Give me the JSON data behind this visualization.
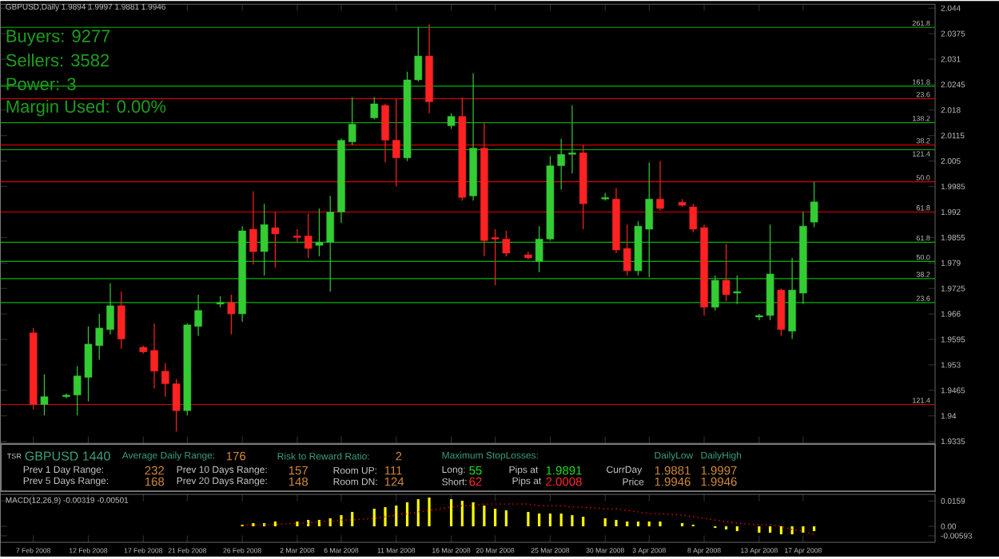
{
  "chart_data": [
    {
      "type": "candlestick",
      "title": "GBPUSD,Daily 1.9894 1.9997 1.9881 1.9946",
      "x": [
        "2008-02-07",
        "2008-02-08",
        "2008-02-10",
        "2008-02-11",
        "2008-02-12",
        "2008-02-13",
        "2008-02-14",
        "2008-02-15",
        "2008-02-17",
        "2008-02-18",
        "2008-02-19",
        "2008-02-20",
        "2008-02-21",
        "2008-02-22",
        "2008-02-24",
        "2008-02-25",
        "2008-02-26",
        "2008-02-27",
        "2008-02-28",
        "2008-02-29",
        "2008-03-02",
        "2008-03-03",
        "2008-03-04",
        "2008-03-05",
        "2008-03-06",
        "2008-03-07",
        "2008-03-09",
        "2008-03-10",
        "2008-03-11",
        "2008-03-12",
        "2008-03-13",
        "2008-03-14",
        "2008-03-16",
        "2008-03-17",
        "2008-03-18",
        "2008-03-19",
        "2008-03-20",
        "2008-03-21",
        "2008-03-23",
        "2008-03-24",
        "2008-03-25",
        "2008-03-26",
        "2008-03-27",
        "2008-03-28",
        "2008-03-30",
        "2008-03-31",
        "2008-04-01",
        "2008-04-02",
        "2008-04-03",
        "2008-04-04",
        "2008-04-06",
        "2008-04-07",
        "2008-04-08",
        "2008-04-09",
        "2008-04-10",
        "2008-04-11",
        "2008-04-13",
        "2008-04-14",
        "2008-04-15",
        "2008-04-16",
        "2008-04-17",
        "2008-04-18"
      ],
      "xlim": [
        "2008-02-04",
        "2008-04-29"
      ],
      "xticks": [
        {
          "value": "2008-02-07",
          "label": null
        },
        {
          "value": "2008-02-12",
          "label": null
        },
        {
          "value": "2008-02-17",
          "label": null
        },
        {
          "value": "2008-02-21",
          "label": null
        },
        {
          "value": "2008-02-26",
          "label": null
        },
        {
          "value": "2008-03-02",
          "label": null
        },
        {
          "value": "2008-03-06",
          "label": null
        },
        {
          "value": "2008-03-11",
          "label": null
        },
        {
          "value": "2008-03-16",
          "label": null
        },
        {
          "value": "2008-03-20",
          "label": null
        },
        {
          "value": "2008-03-25",
          "label": null
        },
        {
          "value": "2008-03-30",
          "label": null
        },
        {
          "value": "2008-04-03",
          "label": null
        },
        {
          "value": "2008-04-08",
          "label": null
        },
        {
          "value": "2008-04-13",
          "label": null
        },
        {
          "value": "2008-04-17",
          "label": null
        }
      ],
      "tick_labels": "y",
      "ohlc": [
        [
          1.9612,
          1.9624,
          1.9417,
          1.9429
        ],
        [
          1.9429,
          1.9506,
          1.9401,
          1.9449
        ],
        [
          1.9449,
          1.9457,
          1.9445,
          1.9453
        ],
        [
          1.9453,
          1.9527,
          1.9401,
          1.9502
        ],
        [
          1.9498,
          1.9628,
          1.9437,
          1.9583
        ],
        [
          1.9579,
          1.966,
          1.9543,
          1.9624
        ],
        [
          1.962,
          1.9738,
          1.9608,
          1.9681
        ],
        [
          1.9681,
          1.9717,
          1.9571,
          1.9596
        ],
        [
          1.9575,
          1.9579,
          1.9559,
          1.9563
        ],
        [
          1.9567,
          1.9636,
          1.947,
          1.9514
        ],
        [
          1.9514,
          1.9535,
          1.9449,
          1.9482
        ],
        [
          1.9482,
          1.9494,
          1.936,
          1.9413
        ],
        [
          1.9413,
          1.9636,
          1.9401,
          1.9632
        ],
        [
          1.9628,
          1.9709,
          1.9604,
          1.9669
        ],
        [
          1.9685,
          1.9705,
          1.9677,
          1.9689
        ],
        [
          1.9689,
          1.9709,
          1.9608,
          1.966
        ],
        [
          1.966,
          1.9884,
          1.964,
          1.9872
        ],
        [
          1.9876,
          1.9973,
          1.9786,
          1.9819
        ],
        [
          1.9819,
          1.9941,
          1.9758,
          1.9888
        ],
        [
          1.988,
          1.992,
          1.9778,
          1.9864
        ],
        [
          1.9859,
          1.9876,
          1.9843,
          1.9855
        ],
        [
          1.9859,
          1.9916,
          1.9803,
          1.9827
        ],
        [
          1.9835,
          1.9929,
          1.9807,
          1.9843
        ],
        [
          1.9843,
          1.9961,
          1.9717,
          1.992
        ],
        [
          1.992,
          2.0107,
          1.9892,
          2.0103
        ],
        [
          2.0099,
          2.0213,
          2.0091,
          2.0144
        ],
        [
          2.016,
          2.0213,
          2.0156,
          2.0196
        ],
        [
          2.0192,
          2.0196,
          2.0046,
          2.0103
        ],
        [
          2.0103,
          2.0209,
          1.9985,
          2.0058
        ],
        [
          2.0058,
          2.0278,
          2.005,
          2.0257
        ],
        [
          2.0257,
          2.0391,
          2.0253,
          2.0318
        ],
        [
          2.0318,
          2.0399,
          2.0172,
          2.0201
        ],
        [
          2.014,
          2.0172,
          2.0132,
          2.0164
        ],
        [
          2.0164,
          2.0213,
          1.9949,
          1.9957
        ],
        [
          1.9961,
          2.0274,
          1.9949,
          2.0083
        ],
        [
          2.0083,
          2.0148,
          1.9807,
          1.9847
        ],
        [
          1.9855,
          1.9876,
          1.9733,
          1.9851
        ],
        [
          1.9851,
          1.9872,
          1.9807,
          1.9815
        ],
        [
          1.9811,
          1.9819,
          1.9799,
          1.9803
        ],
        [
          1.9794,
          1.9884,
          1.9766,
          1.9851
        ],
        [
          1.9851,
          2.0062,
          1.9847,
          2.0038
        ],
        [
          2.0038,
          2.0107,
          1.9977,
          2.0067
        ],
        [
          2.0067,
          2.0192,
          2.0018,
          2.0071
        ],
        [
          2.0071,
          2.0091,
          1.9876,
          1.9941
        ],
        [
          1.9953,
          1.9969,
          1.9949,
          1.9957
        ],
        [
          1.9953,
          1.9981,
          1.9815,
          1.9823
        ],
        [
          1.9827,
          1.9888,
          1.9758,
          1.977
        ],
        [
          1.977,
          1.9896,
          1.9758,
          1.9884
        ],
        [
          1.9876,
          2.0046,
          1.9754,
          1.9953
        ],
        [
          1.9953,
          2.005,
          1.9924,
          1.9929
        ],
        [
          1.9945,
          1.9953,
          1.9933,
          1.9937
        ],
        [
          1.9933,
          1.9941,
          1.9868,
          1.9876
        ],
        [
          1.988,
          1.9888,
          1.9656,
          1.9677
        ],
        [
          1.9677,
          1.9758,
          1.9669,
          1.9746
        ],
        [
          1.9746,
          1.9839,
          1.9693,
          1.9709
        ],
        [
          1.9713,
          1.9758,
          1.9685,
          1.9717
        ],
        [
          1.9652,
          1.966,
          1.9644,
          1.9656
        ],
        [
          1.9656,
          1.9888,
          1.9644,
          1.9762
        ],
        [
          1.9721,
          1.9725,
          1.9604,
          1.962
        ],
        [
          1.9616,
          1.9803,
          1.9596,
          1.9721
        ],
        [
          1.9713,
          1.992,
          1.9685,
          1.9884
        ],
        [
          1.9894,
          1.9997,
          1.9881,
          1.9946
        ]
      ],
      "colors": [
        "#ff2222",
        "#33cc33",
        "#33cc33",
        "#33cc33",
        "#33cc33",
        "#33cc33",
        "#33cc33",
        "#ff2222",
        "#ff2222",
        "#ff2222",
        "#ff2222",
        "#ff2222",
        "#33cc33",
        "#33cc33",
        "#33cc33",
        "#ff2222",
        "#33cc33",
        "#ff2222",
        "#33cc33",
        "#ff2222",
        "#ff2222",
        "#ff2222",
        "#33cc33",
        "#33cc33",
        "#33cc33",
        "#33cc33",
        "#33cc33",
        "#ff2222",
        "#ff2222",
        "#33cc33",
        "#33cc33",
        "#ff2222",
        "#33cc33",
        "#ff2222",
        "#33cc33",
        "#ff2222",
        "#ff2222",
        "#ff2222",
        "#ff2222",
        "#33cc33",
        "#33cc33",
        "#33cc33",
        "#33cc33",
        "#ff2222",
        "#33cc33",
        "#ff2222",
        "#ff2222",
        "#33cc33",
        "#33cc33",
        "#ff2222",
        "#ff2222",
        "#ff2222",
        "#ff2222",
        "#33cc33",
        "#ff2222",
        "#33cc33",
        "#33cc33",
        "#33cc33",
        "#ff2222",
        "#33cc33",
        "#33cc33",
        "#33cc33"
      ],
      "ylim": [
        1.933,
        2.045
      ],
      "yticks": [
        1.9335,
        1.94,
        1.9465,
        1.953,
        1.9595,
        1.966,
        1.9725,
        1.979,
        1.9855,
        1.992,
        1.9985,
        2.005,
        2.0115,
        2.018,
        2.0245,
        2.031,
        2.0375,
        2.044
      ],
      "ref_lines": [
        {
          "axis": "y",
          "value": 2.0391,
          "color": "#00b400"
        },
        {
          "axis": "y",
          "value": 2.0241,
          "color": "#00b400"
        },
        {
          "axis": "y",
          "value": 2.0148,
          "color": "#00b400"
        },
        {
          "axis": "y",
          "value": 2.0079,
          "color": "#00b400"
        },
        {
          "axis": "y",
          "value": 1.9843,
          "color": "#00b400"
        },
        {
          "axis": "y",
          "value": 1.9794,
          "color": "#00b400"
        },
        {
          "axis": "y",
          "value": 1.975,
          "color": "#00b400"
        },
        {
          "axis": "y",
          "value": 1.9689,
          "color": "#00b400"
        },
        {
          "axis": "y",
          "value": 2.0209,
          "color": "#e00000"
        },
        {
          "axis": "y",
          "value": 2.0091,
          "color": "#e00000"
        },
        {
          "axis": "y",
          "value": 1.9997,
          "color": "#e00000"
        },
        {
          "axis": "y",
          "value": 1.992,
          "color": "#e00000"
        },
        {
          "axis": "y",
          "value": 1.9429,
          "color": "#e00000"
        }
      ],
      "annotations": [
        {
          "text": "261.8",
          "y": 2.0391
        },
        {
          "text": "161.8",
          "y": 2.0241
        },
        {
          "text": "138.2",
          "y": 2.0148
        },
        {
          "text": "121.4",
          "y": 2.0079
        },
        {
          "text": "61.8",
          "y": 1.9843
        },
        {
          "text": "50.0",
          "y": 1.9794
        },
        {
          "text": "38.2",
          "y": 1.975
        },
        {
          "text": "23.6",
          "y": 1.9689
        },
        {
          "text": "23.6",
          "y": 2.0209
        },
        {
          "text": "38.2",
          "y": 2.0091
        },
        {
          "text": "50.0",
          "y": 1.9997
        },
        {
          "text": "61.8",
          "y": 1.992
        },
        {
          "text": "121.4",
          "y": 1.9429
        },
        "Buyers: 9277",
        "Sellers: 3582",
        "Power: 3",
        "Margin Used: 0.00%",
        "TSR",
        "GBPUSD 1440",
        "Average Daily Range:",
        "176",
        "Risk to Reward Ratio:",
        "2",
        "Maximum StopLosses:",
        "Prev 1 Day Range:",
        "232",
        "Prev 10 Days Range:",
        "157",
        "Room UP:",
        "111",
        "Long:",
        "55",
        "Pips at",
        "1.9891",
        "CurrDay",
        "1.9881",
        "1.9997",
        "Prev 5 Days Range:",
        "168",
        "Prev 20 Days Range:",
        "148",
        "Room DN:",
        "124",
        "Short:",
        "62",
        "Pips at",
        "2.0008",
        "Price",
        "1.9946",
        "1.9946",
        "DailyLow",
        "DailyHigh"
      ]
    },
    {
      "type": "bar",
      "title": "MACD(12,26,9) -0.00319 -0.00501",
      "x": [
        "2008-02-26",
        "2008-02-27",
        "2008-02-28",
        "2008-02-29",
        "2008-03-02",
        "2008-03-03",
        "2008-03-04",
        "2008-03-05",
        "2008-03-06",
        "2008-03-07",
        "2008-03-09",
        "2008-03-10",
        "2008-03-11",
        "2008-03-12",
        "2008-03-13",
        "2008-03-14",
        "2008-03-16",
        "2008-03-17",
        "2008-03-18",
        "2008-03-19",
        "2008-03-20",
        "2008-03-21",
        "2008-03-23",
        "2008-03-24",
        "2008-03-25",
        "2008-03-26",
        "2008-03-27",
        "2008-03-28",
        "2008-03-30",
        "2008-03-31",
        "2008-04-01",
        "2008-04-02",
        "2008-04-03",
        "2008-04-04",
        "2008-04-06",
        "2008-04-07",
        "2008-04-08",
        "2008-04-09",
        "2008-04-10",
        "2008-04-11",
        "2008-04-13",
        "2008-04-14",
        "2008-04-15",
        "2008-04-16",
        "2008-04-17",
        "2008-04-18"
      ],
      "xlim": [
        "2008-02-04",
        "2008-04-29"
      ],
      "xticks": [
        {
          "value": "2008-02-07",
          "label": "7 Feb 2008"
        },
        {
          "value": "2008-02-12",
          "label": "12 Feb 2008"
        },
        {
          "value": "2008-02-17",
          "label": "17 Feb 2008"
        },
        {
          "value": "2008-02-21",
          "label": "21 Feb 2008"
        },
        {
          "value": "2008-02-26",
          "label": "26 Feb 2008"
        },
        {
          "value": "2008-03-02",
          "label": "2 Mar 2008"
        },
        {
          "value": "2008-03-06",
          "label": "6 Mar 2008"
        },
        {
          "value": "2008-03-11",
          "label": "11 Mar 2008"
        },
        {
          "value": "2008-03-16",
          "label": "16 Mar 2008"
        },
        {
          "value": "2008-03-20",
          "label": "20 Mar 2008"
        },
        {
          "value": "2008-03-25",
          "label": "25 Mar 2008"
        },
        {
          "value": "2008-03-30",
          "label": "30 Mar 2008"
        },
        {
          "value": "2008-04-03",
          "label": "3 Apr 2008"
        },
        {
          "value": "2008-04-08",
          "label": "8 Apr 2008"
        },
        {
          "value": "2008-04-13",
          "label": "13 Apr 2008"
        },
        {
          "value": "2008-04-17",
          "label": "17 Apr 2008"
        }
      ],
      "series": [
        {
          "type": "bar",
          "color": "#ffff00",
          "values": [
            0.001,
            0.002,
            0.002,
            0.003,
            0.003,
            0.004,
            0.004,
            0.005,
            0.007,
            0.009,
            0.011,
            0.012,
            0.013,
            0.015,
            0.017,
            0.018,
            0.017,
            0.016,
            0.015,
            0.013,
            0.011,
            0.01,
            0.009,
            0.008,
            0.008,
            0.008,
            0.007,
            0.006,
            0.005,
            0.004,
            0.003,
            0.003,
            0.003,
            0.003,
            0.002,
            0.001,
            0.0,
            -0.001,
            -0.002,
            -0.003,
            -0.004,
            -0.004,
            -0.005,
            -0.005,
            -0.004,
            -0.003
          ]
        },
        {
          "type": "line",
          "color": "#ff0000",
          "line_style": "dotted",
          "values": [
            0.001,
            0.001,
            0.001,
            0.001,
            0.002,
            0.002,
            0.003,
            0.003,
            0.004,
            0.004,
            0.005,
            0.006,
            0.007,
            0.008,
            0.009,
            0.01,
            0.012,
            0.013,
            0.013,
            0.014,
            0.014,
            0.014,
            0.014,
            0.013,
            0.013,
            0.013,
            0.012,
            0.012,
            0.011,
            0.011,
            0.01,
            0.009,
            0.008,
            0.008,
            0.007,
            0.006,
            0.005,
            0.004,
            0.003,
            0.002,
            0.001,
            0.001,
            0.0,
            -0.002,
            -0.003,
            -0.005
          ]
        }
      ],
      "ylim": [
        -0.01,
        0.02
      ],
      "yticks": [
        {
          "value": -0.00593,
          "label": "-0.00593"
        },
        {
          "value": 0,
          "label": "0.00"
        },
        {
          "value": 0.0159,
          "label": "0.0159"
        }
      ]
    }
  ]
}
